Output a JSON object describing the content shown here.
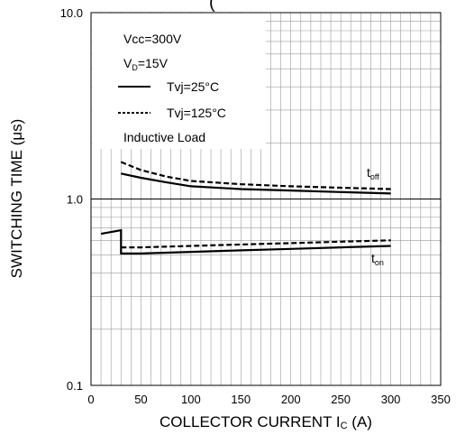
{
  "chart_data": {
    "type": "line",
    "title_fragment": "(",
    "xlabel": "COLLECTOR CURRENT I",
    "xlabel_sub": "C",
    "xlabel_tail": " (A)",
    "ylabel": "SWITCHING TIME (μs)",
    "xlim": [
      0,
      350
    ],
    "ylim": [
      0.1,
      10.0
    ],
    "y_scale": "log",
    "x_ticks": [
      "0",
      "50",
      "100",
      "150",
      "200",
      "250",
      "300",
      "350"
    ],
    "x_tick_values": [
      0,
      50,
      100,
      150,
      200,
      250,
      300,
      350
    ],
    "y_ticks": [
      "0.1",
      "1.0",
      "10.0"
    ],
    "y_tick_values": [
      0.1,
      1.0,
      10.0
    ],
    "grid": true,
    "legend": {
      "placement": "top-left",
      "lines": [
        "Vcc=300V",
        "V",
        "=15V",
        "Tvj=25°C",
        "Tvj=125°C",
        "Inductive Load"
      ],
      "vd_sub": "D"
    },
    "annotations": {
      "toff_main": "t",
      "toff_sub": "off",
      "ton_main": "t",
      "ton_sub": "on"
    },
    "series": [
      {
        "name": "Tvj=25°C",
        "curve": "toff",
        "style": "solid",
        "x": [
          30,
          50,
          75,
          100,
          150,
          200,
          250,
          300
        ],
        "y": [
          1.37,
          1.3,
          1.23,
          1.17,
          1.13,
          1.11,
          1.09,
          1.07
        ]
      },
      {
        "name": "Tvj=125°C",
        "curve": "toff",
        "style": "dashed",
        "x": [
          30,
          50,
          75,
          100,
          150,
          200,
          250,
          300
        ],
        "y": [
          1.58,
          1.43,
          1.32,
          1.25,
          1.2,
          1.17,
          1.15,
          1.13
        ]
      },
      {
        "name": "Tvj=25°C",
        "curve": "ton",
        "style": "solid",
        "x": [
          10,
          20,
          30,
          30,
          50,
          100,
          150,
          200,
          250,
          300
        ],
        "y": [
          0.65,
          0.665,
          0.68,
          0.51,
          0.51,
          0.52,
          0.53,
          0.54,
          0.55,
          0.56
        ]
      },
      {
        "name": "Tvj=125°C",
        "curve": "ton",
        "style": "dashed",
        "x": [
          30,
          50,
          100,
          150,
          200,
          250,
          300
        ],
        "y": [
          0.55,
          0.55,
          0.56,
          0.57,
          0.58,
          0.59,
          0.6
        ]
      }
    ]
  }
}
